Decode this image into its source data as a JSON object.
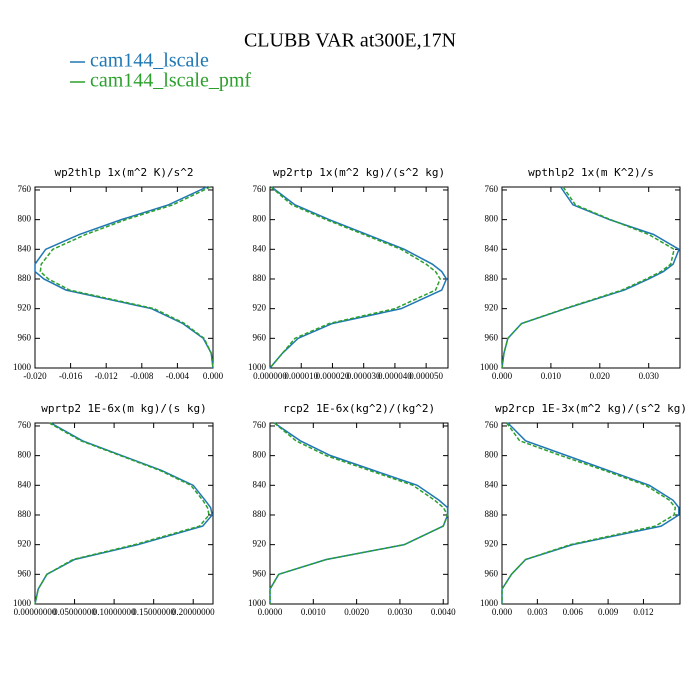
{
  "title": "CLUBB VAR at300E,17N",
  "legend": [
    {
      "name": "cam144_lscale",
      "color": "#1f77b4",
      "linestyle": "solid"
    },
    {
      "name": "cam144_lscale_pmf",
      "color": "#2ca02c",
      "linestyle": "dashed"
    }
  ],
  "chart_data": [
    {
      "type": "line",
      "title": "wp2thlp  1x(m^2 K)/s^2",
      "y": [
        756,
        780,
        800,
        820,
        840,
        860,
        870,
        880,
        895,
        920,
        940,
        960,
        980,
        1000
      ],
      "ylim": [
        1000,
        756
      ],
      "yticks": [
        760,
        800,
        840,
        880,
        920,
        960,
        1000
      ],
      "xlim": [
        -0.02,
        0.0
      ],
      "xticks": [
        {
          "value": -0.02,
          "label": "-0.020"
        },
        {
          "value": -0.016,
          "label": "-0.016"
        },
        {
          "value": -0.012,
          "label": "-0.012"
        },
        {
          "value": -0.008,
          "label": "-0.008"
        },
        {
          "value": -0.004,
          "label": "-0.004"
        },
        {
          "value": 0.0,
          "label": "0.000"
        }
      ],
      "series": [
        {
          "values": [
            -0.0007,
            -0.005,
            -0.0103,
            -0.015,
            -0.0188,
            -0.02,
            -0.02,
            -0.019,
            -0.0165,
            -0.0069,
            -0.0034,
            -0.0011,
            -0.0002,
            0.0
          ]
        },
        {
          "values": [
            -0.0003,
            -0.0045,
            -0.0098,
            -0.0143,
            -0.018,
            -0.0193,
            -0.0194,
            -0.0185,
            -0.0161,
            -0.0066,
            -0.0032,
            -0.001,
            -0.0002,
            0.0
          ]
        }
      ]
    },
    {
      "type": "line",
      "title": "wp2rtp  1x(m^2 kg)/(s^2 kg)",
      "y": [
        756,
        780,
        800,
        820,
        840,
        860,
        870,
        880,
        895,
        920,
        940,
        960,
        980,
        1000
      ],
      "ylim": [
        1000,
        756
      ],
      "yticks": [
        760,
        800,
        840,
        880,
        920,
        960,
        1000
      ],
      "xlim": [
        0,
        5.7e-05
      ],
      "xticks": [
        {
          "value": 0,
          "label": "0.000000"
        },
        {
          "value": 1e-05,
          "label": "0.000010"
        },
        {
          "value": 2e-05,
          "label": "0.000020"
        },
        {
          "value": 3e-05,
          "label": "0.000030"
        },
        {
          "value": 4e-05,
          "label": "0.000040"
        },
        {
          "value": 5e-05,
          "label": "0.000050"
        }
      ],
      "series": [
        {
          "values": [
            5e-07,
            8e-06,
            1.9e-05,
            3.1e-05,
            4.3e-05,
            5.2e-05,
            5.5e-05,
            5.65e-05,
            5.5e-05,
            4.2e-05,
            2e-05,
            9e-06,
            4e-06,
            0.0
          ]
        },
        {
          "values": [
            3e-07,
            7e-06,
            1.8e-05,
            3e-05,
            4.2e-05,
            5e-05,
            5.3e-05,
            5.45e-05,
            5.3e-05,
            4e-05,
            1.9e-05,
            8e-06,
            4e-06,
            0.0
          ]
        }
      ]
    },
    {
      "type": "line",
      "title": "wpthlp2  1x(m K^2)/s",
      "y": [
        756,
        780,
        800,
        820,
        840,
        860,
        870,
        880,
        895,
        920,
        940,
        960,
        980,
        1000
      ],
      "ylim": [
        1000,
        756
      ],
      "yticks": [
        760,
        800,
        840,
        880,
        920,
        960,
        1000
      ],
      "xlim": [
        0,
        0.0364
      ],
      "xticks": [
        {
          "value": 0,
          "label": "0.000"
        },
        {
          "value": 0.01,
          "label": "0.010"
        },
        {
          "value": 0.02,
          "label": "0.020"
        },
        {
          "value": 0.03,
          "label": "0.030"
        }
      ],
      "series": [
        {
          "values": [
            0.012,
            0.0145,
            0.022,
            0.031,
            0.0362,
            0.035,
            0.033,
            0.03,
            0.025,
            0.013,
            0.004,
            0.0012,
            0.0004,
            0.0
          ]
        },
        {
          "values": [
            0.0125,
            0.015,
            0.0222,
            0.03,
            0.0352,
            0.0345,
            0.0325,
            0.0295,
            0.0245,
            0.0128,
            0.004,
            0.0012,
            0.0004,
            0.0
          ]
        }
      ]
    },
    {
      "type": "line",
      "title": "wprtp2  1E-6x(m kg)/(s kg)",
      "y": [
        756,
        780,
        800,
        820,
        840,
        860,
        870,
        880,
        895,
        920,
        940,
        960,
        980,
        1000
      ],
      "ylim": [
        1000,
        756
      ],
      "yticks": [
        760,
        800,
        840,
        880,
        920,
        960,
        1000
      ],
      "xlim": [
        0,
        0.225
      ],
      "xticks": [
        {
          "value": 0,
          "label": "0.00000000"
        },
        {
          "value": 0.05,
          "label": "0.05000000"
        },
        {
          "value": 0.1,
          "label": "0.10000000"
        },
        {
          "value": 0.15,
          "label": "0.15000000"
        },
        {
          "value": 0.2,
          "label": "0.20000000"
        }
      ],
      "series": [
        {
          "values": [
            0.02,
            0.06,
            0.11,
            0.16,
            0.2,
            0.215,
            0.222,
            0.224,
            0.212,
            0.13,
            0.05,
            0.015,
            0.004,
            0.0
          ]
        },
        {
          "values": [
            0.018,
            0.058,
            0.108,
            0.158,
            0.197,
            0.212,
            0.218,
            0.22,
            0.208,
            0.126,
            0.048,
            0.015,
            0.004,
            0.0
          ]
        }
      ]
    },
    {
      "type": "line",
      "title": "rcp2  1E-6x(kg^2)/(kg^2)",
      "y": [
        756,
        780,
        800,
        820,
        840,
        860,
        870,
        880,
        895,
        920,
        940,
        960,
        980,
        1000
      ],
      "ylim": [
        1000,
        756
      ],
      "yticks": [
        760,
        800,
        840,
        880,
        920,
        960,
        1000
      ],
      "xlim": [
        0,
        0.00411
      ],
      "xticks": [
        {
          "value": 0,
          "label": "0.0000"
        },
        {
          "value": 0.001,
          "label": "0.0010"
        },
        {
          "value": 0.002,
          "label": "0.0020"
        },
        {
          "value": 0.003,
          "label": "0.0030"
        },
        {
          "value": 0.004,
          "label": "0.0040"
        }
      ],
      "series": [
        {
          "values": [
            0.0001,
            0.0007,
            0.0014,
            0.0024,
            0.0034,
            0.0039,
            0.0041,
            0.0041,
            0.004,
            0.0031,
            0.0013,
            0.0002,
            0.0,
            0.0
          ]
        },
        {
          "values": [
            0.0001,
            0.0006,
            0.0013,
            0.0023,
            0.0033,
            0.0038,
            0.004,
            0.0041,
            0.004,
            0.0031,
            0.0013,
            0.0002,
            0.0,
            0.0
          ]
        }
      ]
    },
    {
      "type": "line",
      "title": "wp2rcp  1E-3x(m^2 kg)/(s^2 kg)",
      "y": [
        756,
        780,
        800,
        820,
        840,
        860,
        870,
        880,
        895,
        920,
        940,
        960,
        980,
        1000
      ],
      "ylim": [
        1000,
        756
      ],
      "yticks": [
        760,
        800,
        840,
        880,
        920,
        960,
        1000
      ],
      "xlim": [
        0,
        0.0151
      ],
      "xticks": [
        {
          "value": 0,
          "label": "0.000"
        },
        {
          "value": 0.003,
          "label": "0.003"
        },
        {
          "value": 0.006,
          "label": "0.006"
        },
        {
          "value": 0.009,
          "label": "0.009"
        },
        {
          "value": 0.012,
          "label": "0.012"
        }
      ],
      "series": [
        {
          "values": [
            0.0005,
            0.002,
            0.0055,
            0.009,
            0.0125,
            0.0145,
            0.015,
            0.015,
            0.0135,
            0.006,
            0.002,
            0.0008,
            0.0,
            0.0
          ]
        },
        {
          "values": [
            0.0004,
            0.0015,
            0.005,
            0.0087,
            0.0122,
            0.0142,
            0.0147,
            0.0146,
            0.013,
            0.0058,
            0.002,
            0.0008,
            0.0,
            0.0
          ]
        }
      ]
    }
  ]
}
